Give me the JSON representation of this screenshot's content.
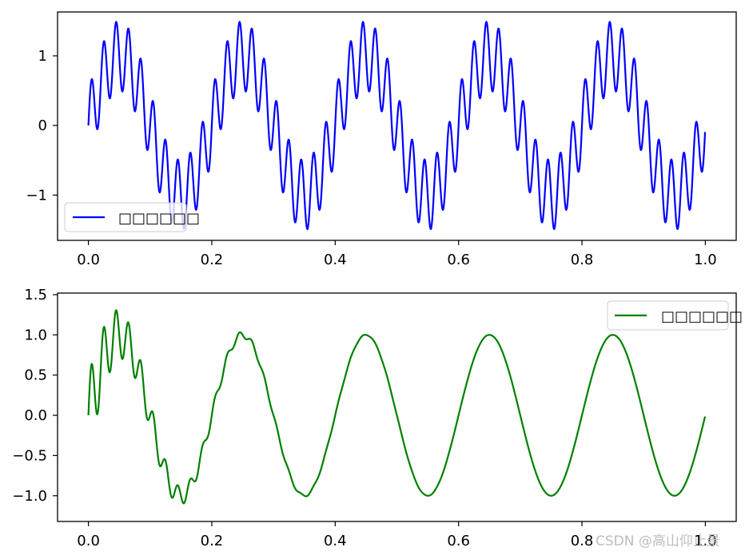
{
  "watermark": "CSDN @高山仰止景",
  "chart_data": [
    {
      "type": "line",
      "x_range": [
        0,
        1
      ],
      "xlim": [
        -0.05,
        1.05
      ],
      "ylim": [
        -1.65,
        1.63
      ],
      "xticks": [
        0.0,
        0.2,
        0.4,
        0.6,
        0.8,
        1.0
      ],
      "xtick_labels": [
        "0.0",
        "0.2",
        "0.4",
        "0.6",
        "0.8",
        "1.0"
      ],
      "yticks": [
        -1,
        0,
        1
      ],
      "ytick_labels": [
        "−1",
        "0",
        "1"
      ],
      "grid": false,
      "legend_position": "lower-left",
      "series": [
        {
          "name": "□□□□□□",
          "color": "#0000ff",
          "expression": "sin(2*pi*5*x) + 0.5*sin(2*pi*50*x)",
          "components": [
            {
              "amplitude": 1.0,
              "frequency": 5
            },
            {
              "amplitude": 0.5,
              "frequency": 50
            }
          ]
        }
      ]
    },
    {
      "type": "line",
      "x_range": [
        0,
        1
      ],
      "xlim": [
        -0.05,
        1.05
      ],
      "ylim": [
        -1.32,
        1.52
      ],
      "xticks": [
        0.0,
        0.2,
        0.4,
        0.6,
        0.8,
        1.0
      ],
      "xtick_labels": [
        "0.0",
        "0.2",
        "0.4",
        "0.6",
        "0.8",
        "1.0"
      ],
      "yticks": [
        -1.0,
        -0.5,
        0.0,
        0.5,
        1.0,
        1.5
      ],
      "ytick_labels": [
        "−1.0",
        "−0.5",
        "0.0",
        "0.5",
        "1.0",
        "1.5"
      ],
      "grid": false,
      "legend_position": "upper-right",
      "series": [
        {
          "name": "□□□□□□",
          "color": "#008000",
          "expression": "sin(2*pi*5*x) + 0.5*exp(-10*x)*sin(2*pi*50*x)",
          "components": [
            {
              "amplitude": 1.0,
              "frequency": 5
            },
            {
              "amplitude": 0.5,
              "frequency": 50,
              "decay_rate": 10
            }
          ]
        }
      ]
    }
  ]
}
